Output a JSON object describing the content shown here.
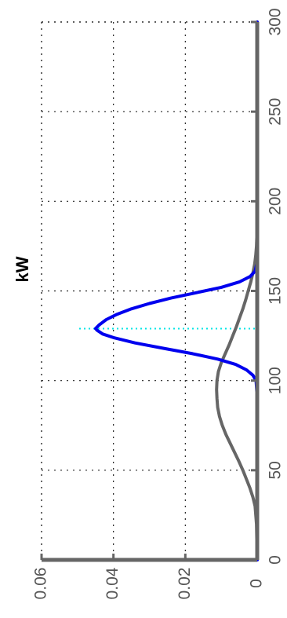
{
  "chart_data": {
    "type": "line",
    "title": "kW",
    "xlabel": "",
    "ylabel": "",
    "orientation": "rotated-90-ccw",
    "xlim": [
      0,
      300
    ],
    "ylim": [
      0,
      0.06
    ],
    "x_ticks": [
      0,
      50,
      100,
      150,
      200,
      250,
      300
    ],
    "x_tick_labels": [
      "0",
      "50",
      "100",
      "150",
      "200",
      "250",
      "300"
    ],
    "y_ticks": [
      0,
      0.02,
      0.04,
      0.06
    ],
    "y_tick_labels": [
      "0",
      "0.02",
      "0.04",
      "0.06"
    ],
    "grid": true,
    "grid_style": "dotted",
    "vline": {
      "x": 129,
      "color": "#00e5e5",
      "style": "dotted"
    },
    "series": [
      {
        "color": "#0000ee",
        "x": [
          0,
          90,
          100,
          103,
          106,
          109,
          112,
          115,
          118,
          121,
          124,
          126,
          128,
          129,
          131,
          134,
          137,
          140,
          143,
          146,
          149,
          152,
          155,
          158,
          161,
          165,
          170,
          200,
          300
        ],
        "y": [
          0,
          0,
          0.0003,
          0.0012,
          0.003,
          0.006,
          0.011,
          0.018,
          0.026,
          0.034,
          0.04,
          0.043,
          0.0445,
          0.045,
          0.044,
          0.042,
          0.039,
          0.035,
          0.03,
          0.024,
          0.017,
          0.01,
          0.005,
          0.002,
          0.0006,
          0.0001,
          0,
          0,
          0
        ]
      },
      {
        "color": "#666666",
        "x": [
          0,
          20,
          30,
          35,
          40,
          45,
          50,
          55,
          60,
          65,
          70,
          75,
          80,
          85,
          90,
          95,
          100,
          105,
          110,
          115,
          120,
          125,
          130,
          135,
          140,
          145,
          150,
          155,
          160,
          165,
          170,
          175,
          180,
          190,
          200,
          300
        ],
        "y": [
          0,
          0.0002,
          0.0006,
          0.0012,
          0.002,
          0.003,
          0.004,
          0.0051,
          0.0063,
          0.0075,
          0.0087,
          0.0097,
          0.0105,
          0.011,
          0.0112,
          0.0113,
          0.0112,
          0.0108,
          0.01,
          0.0089,
          0.0078,
          0.0068,
          0.0058,
          0.0049,
          0.004,
          0.0032,
          0.0025,
          0.0018,
          0.0012,
          0.0007,
          0.0004,
          0.0002,
          0.0001,
          0,
          0,
          0
        ]
      }
    ]
  }
}
